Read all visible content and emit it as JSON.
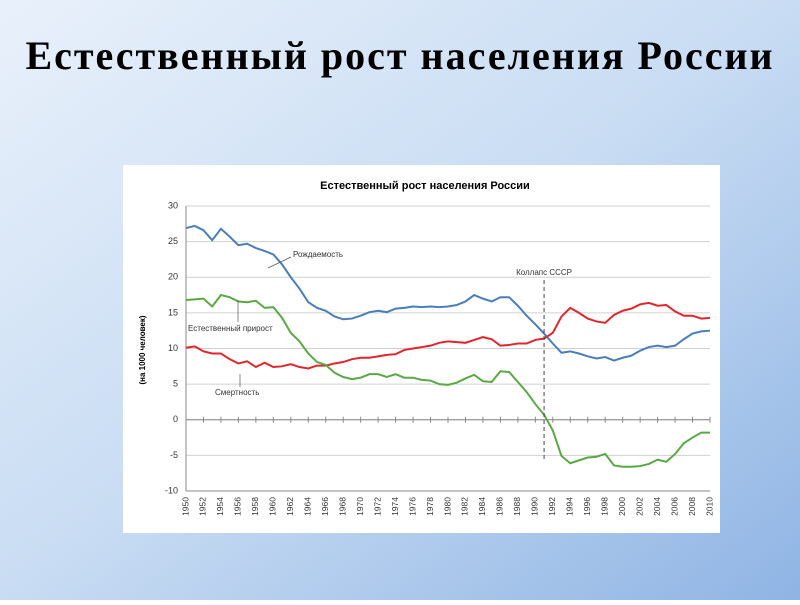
{
  "slide_title": "Естественный рост населения России",
  "chart_data": {
    "type": "line",
    "title": "Естественный рост населения России",
    "ylabel": "(на 1000 человек)",
    "x": [
      1950,
      1951,
      1952,
      1953,
      1954,
      1955,
      1956,
      1957,
      1958,
      1959,
      1960,
      1961,
      1962,
      1963,
      1964,
      1965,
      1966,
      1967,
      1968,
      1969,
      1970,
      1971,
      1972,
      1973,
      1974,
      1975,
      1976,
      1977,
      1978,
      1979,
      1980,
      1981,
      1982,
      1983,
      1984,
      1985,
      1986,
      1987,
      1988,
      1989,
      1990,
      1991,
      1992,
      1993,
      1994,
      1995,
      1996,
      1997,
      1998,
      1999,
      2000,
      2001,
      2002,
      2003,
      2004,
      2005,
      2006,
      2007,
      2008,
      2009,
      2010
    ],
    "xlim": [
      1950,
      2010
    ],
    "xticks": [
      1950,
      1952,
      1954,
      1956,
      1958,
      1960,
      1962,
      1964,
      1966,
      1968,
      1970,
      1972,
      1974,
      1976,
      1978,
      1980,
      1982,
      1984,
      1986,
      1988,
      1990,
      1992,
      1994,
      1996,
      1998,
      2000,
      2002,
      2004,
      2006,
      2008,
      2010
    ],
    "ylim": [
      -10,
      30
    ],
    "yticks": [
      -10,
      -5,
      0,
      5,
      10,
      15,
      20,
      25,
      30
    ],
    "grid": true,
    "series": [
      {
        "color": "#4a7ebb",
        "values": [
          26.9,
          27.2,
          26.6,
          25.2,
          26.8,
          25.7,
          24.5,
          24.7,
          24.1,
          23.7,
          23.2,
          21.8,
          20.0,
          18.4,
          16.5,
          15.7,
          15.3,
          14.5,
          14.1,
          14.2,
          14.6,
          15.1,
          15.3,
          15.1,
          15.6,
          15.7,
          15.9,
          15.8,
          15.9,
          15.8,
          15.9,
          16.1,
          16.6,
          17.5,
          17.0,
          16.6,
          17.2,
          17.2,
          16.0,
          14.6,
          13.4,
          12.1,
          10.7,
          9.4,
          9.6,
          9.3,
          8.9,
          8.6,
          8.8,
          8.3,
          8.7,
          9.0,
          9.7,
          10.2,
          10.4,
          10.2,
          10.4,
          11.3,
          12.1,
          12.4,
          12.5
        ]
      },
      {
        "color": "#e0262c",
        "values": [
          10.1,
          10.3,
          9.6,
          9.3,
          9.3,
          8.5,
          7.9,
          8.2,
          7.4,
          8.0,
          7.4,
          7.5,
          7.8,
          7.4,
          7.2,
          7.6,
          7.6,
          7.9,
          8.1,
          8.5,
          8.7,
          8.7,
          8.9,
          9.1,
          9.2,
          9.8,
          10.0,
          10.2,
          10.4,
          10.8,
          11.0,
          10.9,
          10.8,
          11.2,
          11.6,
          11.3,
          10.4,
          10.5,
          10.7,
          10.7,
          11.2,
          11.4,
          12.2,
          14.5,
          15.7,
          15.0,
          14.2,
          13.8,
          13.6,
          14.7,
          15.3,
          15.6,
          16.2,
          16.4,
          16.0,
          16.1,
          15.2,
          14.6,
          14.6,
          14.2,
          14.3
        ]
      },
      {
        "color": "#5aa844",
        "values": [
          16.8,
          16.9,
          17.0,
          15.9,
          17.5,
          17.2,
          16.6,
          16.5,
          16.7,
          15.7,
          15.8,
          14.3,
          12.2,
          11.0,
          9.3,
          8.1,
          7.7,
          6.6,
          6.0,
          5.7,
          5.9,
          6.4,
          6.4,
          6.0,
          6.4,
          5.9,
          5.9,
          5.6,
          5.5,
          5.0,
          4.9,
          5.2,
          5.8,
          6.3,
          5.4,
          5.3,
          6.8,
          6.7,
          5.3,
          3.9,
          2.2,
          0.7,
          -1.5,
          -5.1,
          -6.1,
          -5.7,
          -5.3,
          -5.2,
          -4.8,
          -6.4,
          -6.6,
          -6.6,
          -6.5,
          -6.2,
          -5.6,
          -5.9,
          -4.8,
          -3.3,
          -2.5,
          -1.8,
          -1.8
        ]
      }
    ],
    "annotations": [
      {
        "text": "Рождаемость"
      },
      {
        "text": "Естественный прирост"
      },
      {
        "text": "Смертность"
      },
      {
        "text": "Коллапс СССР",
        "x": 1991
      }
    ]
  }
}
